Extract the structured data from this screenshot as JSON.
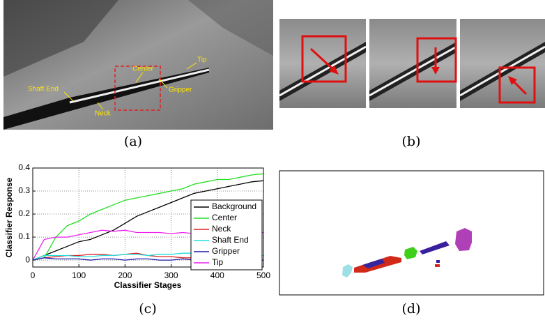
{
  "panels": {
    "a": {
      "caption": "(a)",
      "labels": [
        "Tip",
        "Center",
        "Gripper",
        "Shaft End",
        "Neck"
      ]
    },
    "b": {
      "caption": "(b)"
    },
    "c": {
      "caption": "(c)"
    },
    "d": {
      "caption": "(d)"
    }
  },
  "chart_data": {
    "type": "line",
    "xlabel": "Classifier Stages",
    "ylabel": "Classifier Response",
    "x": [
      0,
      25,
      50,
      75,
      100,
      125,
      150,
      175,
      200,
      225,
      250,
      275,
      300,
      325,
      350,
      375,
      400,
      425,
      450,
      475,
      500
    ],
    "series": [
      {
        "name": "Background",
        "color": "#000000",
        "values": [
          0,
          0.02,
          0.04,
          0.06,
          0.08,
          0.09,
          0.11,
          0.13,
          0.16,
          0.19,
          0.21,
          0.23,
          0.25,
          0.27,
          0.29,
          0.3,
          0.31,
          0.32,
          0.33,
          0.34,
          0.345
        ]
      },
      {
        "name": "Center",
        "color": "#22dd22",
        "values": [
          0,
          0.01,
          0.1,
          0.15,
          0.17,
          0.2,
          0.22,
          0.24,
          0.26,
          0.27,
          0.28,
          0.29,
          0.3,
          0.31,
          0.33,
          0.34,
          0.35,
          0.35,
          0.36,
          0.37,
          0.375
        ]
      },
      {
        "name": "Neck",
        "color": "#dd2222",
        "values": [
          0,
          0.01,
          0.015,
          0.02,
          0.02,
          0.025,
          0.025,
          0.02,
          0.025,
          0.03,
          0.02,
          0.015,
          0.015,
          0.01,
          0.01,
          0.005,
          0.005,
          0.01,
          0.01,
          0,
          0
        ]
      },
      {
        "name": "Shaft End",
        "color": "#22dddd",
        "values": [
          0,
          0.02,
          0.02,
          0.02,
          0.015,
          0.015,
          0.02,
          0.02,
          0.025,
          0.025,
          0.02,
          0.025,
          0.025,
          0.03,
          0.03,
          0.03,
          0.03,
          0.03,
          0.03,
          0.02,
          0.02
        ]
      },
      {
        "name": "Gripper",
        "color": "#1a1aaa",
        "values": [
          0,
          0.01,
          0.005,
          0.005,
          0.005,
          0,
          0.005,
          0.005,
          0,
          0.005,
          0.005,
          0,
          0,
          0.005,
          0,
          0,
          0.005,
          0,
          0,
          0,
          0
        ]
      },
      {
        "name": "Tip",
        "color": "#ee22ee",
        "values": [
          0,
          0.09,
          0.1,
          0.1,
          0.11,
          0.12,
          0.13,
          0.125,
          0.13,
          0.12,
          0.12,
          0.12,
          0.115,
          0.12,
          0.115,
          0.115,
          0.11,
          0.11,
          0.115,
          0.12,
          0.12
        ]
      }
    ],
    "xlim": [
      0,
      500
    ],
    "xticks": [
      0,
      100,
      200,
      300,
      400,
      500
    ],
    "ylim": [
      -0.03,
      0.4
    ],
    "yticks": [
      0,
      0.1,
      0.2,
      0.3,
      0.4
    ],
    "grid": true,
    "legend": "lower right"
  }
}
